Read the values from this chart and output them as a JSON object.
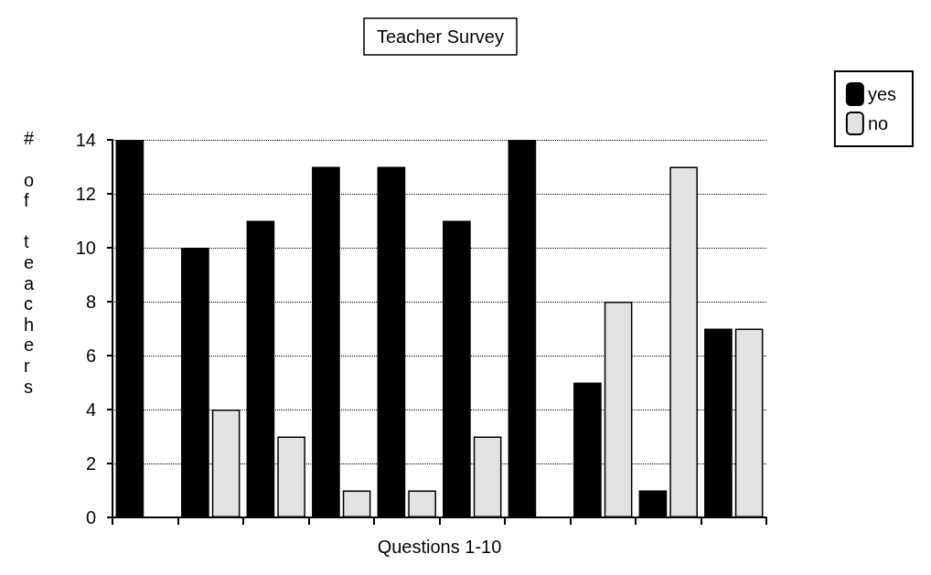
{
  "chart_data": {
    "type": "bar",
    "title": "Teacher Survey",
    "xlabel": "Questions 1-10",
    "ylabel": "# of teachers",
    "categories": [
      null,
      null,
      null,
      null,
      null,
      null,
      null,
      null,
      null,
      null
    ],
    "series": [
      {
        "name": "yes",
        "color": "#000000",
        "values": [
          14,
          10,
          11,
          13,
          13,
          11,
          14,
          5,
          1,
          7
        ]
      },
      {
        "name": "no",
        "color": "#e2e2e2",
        "values": [
          0,
          4,
          3,
          1,
          1,
          3,
          0,
          8,
          13,
          7
        ]
      }
    ],
    "ylim": [
      0,
      14
    ],
    "yticks": [
      0,
      2,
      4,
      6,
      8,
      10,
      12,
      14
    ],
    "grid": "y",
    "legend": "top right"
  }
}
